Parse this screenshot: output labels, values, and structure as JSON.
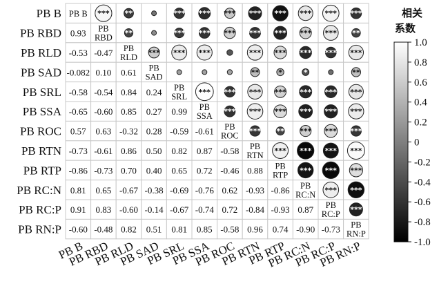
{
  "chart_data": {
    "type": "heatmap",
    "subtype": "correlation-matrix",
    "variables": [
      "PB B",
      "PB RBD",
      "PB RLD",
      "PB SAD",
      "PB SRL",
      "PB SSA",
      "PB ROC",
      "PB RTN",
      "PB RTP",
      "PB RC:N",
      "PB RC:P",
      "PB RN:P"
    ],
    "diagonal_labels": [
      [
        "PB B"
      ],
      [
        "PB",
        "RBD"
      ],
      [
        "PB",
        "RLD"
      ],
      [
        "PB",
        "SAD"
      ],
      [
        "PB",
        "SRL"
      ],
      [
        "PB",
        "SSA"
      ],
      [
        "PB",
        "ROC"
      ],
      [
        "PB",
        "RTN"
      ],
      [
        "PB",
        "RTP"
      ],
      [
        "PB",
        "RC:N"
      ],
      [
        "PB",
        "RC:P"
      ],
      [
        "PB",
        "RN:P"
      ]
    ],
    "lower_triangle_display": [
      "0.93",
      "-0.53",
      "-0.47",
      "-0.082",
      "0.10",
      "0.61",
      "-0.58",
      "-0.54",
      "0.84",
      "0.24",
      "-0.65",
      "-0.60",
      "0.85",
      "0.27",
      "0.99",
      "0.57",
      "0.63",
      "-0.32",
      "0.28",
      "-0.59",
      "-0.61",
      "-0.73",
      "-0.61",
      "0.86",
      "0.50",
      "0.82",
      "0.87",
      "-0.58",
      "-0.86",
      "-0.73",
      "0.70",
      "0.40",
      "0.65",
      "0.72",
      "-0.46",
      "0.88",
      "0.81",
      "0.65",
      "-0.67",
      "-0.38",
      "-0.69",
      "-0.76",
      "0.62",
      "-0.93",
      "-0.86",
      "0.91",
      "0.83",
      "-0.60",
      "-0.14",
      "-0.67",
      "-0.74",
      "0.72",
      "-0.84",
      "-0.93",
      "0.87",
      "-0.60",
      "-0.48",
      "0.82",
      "0.51",
      "0.81",
      "0.85",
      "-0.58",
      "0.96",
      "0.74",
      "-0.90",
      "-0.73"
    ],
    "correlations": [
      [
        1.0,
        0.93,
        -0.53,
        -0.082,
        -0.58,
        -0.65,
        0.57,
        -0.73,
        -0.86,
        0.81,
        0.91,
        -0.6
      ],
      [
        0.93,
        1.0,
        -0.47,
        0.1,
        -0.54,
        -0.6,
        0.63,
        -0.61,
        -0.73,
        0.65,
        0.83,
        -0.48
      ],
      [
        -0.53,
        -0.47,
        1.0,
        0.61,
        0.84,
        0.85,
        -0.32,
        0.86,
        0.7,
        -0.67,
        -0.6,
        0.82
      ],
      [
        -0.082,
        0.1,
        0.61,
        1.0,
        0.24,
        0.27,
        0.28,
        0.5,
        0.4,
        -0.38,
        -0.14,
        0.51
      ],
      [
        -0.58,
        -0.54,
        0.84,
        0.24,
        1.0,
        0.99,
        -0.59,
        0.82,
        0.65,
        -0.69,
        -0.67,
        0.81
      ],
      [
        -0.65,
        -0.6,
        0.85,
        0.27,
        0.99,
        1.0,
        -0.61,
        0.87,
        0.72,
        -0.76,
        -0.74,
        0.85
      ],
      [
        0.57,
        0.63,
        -0.32,
        0.28,
        -0.59,
        -0.61,
        1.0,
        -0.58,
        -0.46,
        0.62,
        0.72,
        -0.58
      ],
      [
        -0.73,
        -0.61,
        0.86,
        0.5,
        0.82,
        0.87,
        -0.58,
        1.0,
        0.88,
        -0.93,
        -0.84,
        0.96
      ],
      [
        -0.86,
        -0.73,
        0.7,
        0.4,
        0.65,
        0.72,
        -0.46,
        0.88,
        1.0,
        -0.86,
        -0.93,
        0.74
      ],
      [
        0.81,
        0.65,
        -0.67,
        -0.38,
        -0.69,
        -0.76,
        0.62,
        -0.93,
        -0.86,
        1.0,
        0.87,
        -0.9
      ],
      [
        0.91,
        0.83,
        -0.6,
        -0.14,
        -0.67,
        -0.74,
        0.72,
        -0.84,
        -0.93,
        0.87,
        1.0,
        -0.73
      ],
      [
        -0.6,
        -0.48,
        0.82,
        0.51,
        0.81,
        0.85,
        -0.58,
        0.96,
        0.74,
        -0.9,
        -0.73,
        1.0
      ]
    ],
    "significance": [
      [
        "",
        "***",
        "**",
        "",
        "***",
        "***",
        "***",
        "***",
        "***",
        "***",
        "***",
        "***"
      ],
      [
        "***",
        "",
        "**",
        "",
        "***",
        "***",
        "***",
        "***",
        "***",
        "***",
        "***",
        "**"
      ],
      [
        "**",
        "**",
        "",
        "***",
        "***",
        "***",
        "",
        "***",
        "***",
        "***",
        "***",
        "***"
      ],
      [
        "",
        "",
        "***",
        "",
        "",
        "",
        "",
        "**",
        "*",
        "*",
        "",
        "**"
      ],
      [
        "***",
        "***",
        "***",
        "",
        "",
        "***",
        "***",
        "***",
        "***",
        "***",
        "***",
        "***"
      ],
      [
        "***",
        "***",
        "***",
        "",
        "***",
        "",
        "***",
        "***",
        "***",
        "***",
        "***",
        "***"
      ],
      [
        "***",
        "***",
        "",
        "",
        "***",
        "***",
        "",
        "***",
        "**",
        "***",
        "***",
        "***"
      ],
      [
        "***",
        "***",
        "***",
        "**",
        "***",
        "***",
        "***",
        "",
        "***",
        "***",
        "***",
        "***"
      ],
      [
        "***",
        "***",
        "***",
        "*",
        "***",
        "***",
        "**",
        "***",
        "",
        "***",
        "***",
        "***"
      ],
      [
        "***",
        "***",
        "***",
        "*",
        "***",
        "***",
        "***",
        "***",
        "***",
        "",
        "***",
        "***"
      ],
      [
        "***",
        "***",
        "***",
        "",
        "***",
        "***",
        "***",
        "***",
        "***",
        "***",
        "",
        "***"
      ],
      [
        "***",
        "**",
        "***",
        "**",
        "***",
        "***",
        "***",
        "***",
        "***",
        "***",
        "***",
        ""
      ]
    ],
    "colorbar": {
      "title_lines": [
        "相关",
        "系数"
      ],
      "ticks": [
        "1.0",
        "0.8",
        "0.6",
        "0.4",
        "0.2",
        "0",
        "-0.2",
        "-0.4",
        "-0.6",
        "-0.8",
        "-1.0"
      ],
      "range": [
        -1.0,
        1.0
      ],
      "low_color": "#000000",
      "high_color": "#ffffff"
    },
    "grid": true
  }
}
